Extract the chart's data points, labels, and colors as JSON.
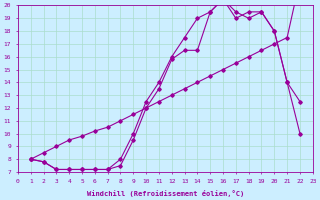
{
  "xlabel": "Windchill (Refroidissement éolien,°C)",
  "bg_color": "#cceeff",
  "line_color": "#990099",
  "grid_color": "#aaddcc",
  "xlim": [
    0,
    23
  ],
  "ylim": [
    7,
    20
  ],
  "yticks": [
    7,
    8,
    9,
    10,
    11,
    12,
    13,
    14,
    15,
    16,
    17,
    18,
    19,
    20
  ],
  "xticks": [
    0,
    1,
    2,
    3,
    4,
    5,
    6,
    7,
    8,
    9,
    10,
    11,
    12,
    13,
    14,
    15,
    16,
    17,
    18,
    19,
    20,
    21,
    22,
    23
  ],
  "line1_x": [
    1,
    2,
    3,
    4,
    5,
    6,
    7,
    8,
    9,
    10,
    11,
    12,
    13,
    14,
    15,
    16,
    17,
    18,
    19,
    20,
    21,
    22
  ],
  "line1_y": [
    8.0,
    7.8,
    7.2,
    7.2,
    7.2,
    7.2,
    7.2,
    7.5,
    9.5,
    12.0,
    13.5,
    15.8,
    16.5,
    16.5,
    19.5,
    20.5,
    19.5,
    19.0,
    19.5,
    18.0,
    14.0,
    10.0
  ],
  "line2_x": [
    1,
    2,
    3,
    4,
    5,
    6,
    7,
    8,
    9,
    10,
    11,
    12,
    13,
    14,
    15,
    16,
    17,
    18,
    19,
    20,
    21,
    22
  ],
  "line2_y": [
    8.0,
    7.8,
    7.2,
    7.2,
    7.2,
    7.2,
    7.2,
    8.0,
    10.0,
    12.5,
    14.0,
    16.0,
    17.5,
    19.0,
    19.5,
    20.5,
    19.0,
    19.5,
    19.5,
    18.0,
    14.0,
    12.5
  ],
  "line3_x": [
    1,
    2,
    3,
    4,
    5,
    6,
    7,
    8,
    9,
    10,
    11,
    12,
    13,
    14,
    15,
    16,
    17,
    18,
    19,
    20,
    21,
    22
  ],
  "line3_y": [
    8.0,
    8.5,
    9.0,
    9.5,
    9.8,
    10.2,
    10.5,
    11.0,
    11.5,
    12.0,
    12.5,
    13.0,
    13.5,
    14.0,
    14.5,
    15.0,
    15.5,
    16.0,
    16.5,
    17.0,
    17.5,
    22.0
  ]
}
